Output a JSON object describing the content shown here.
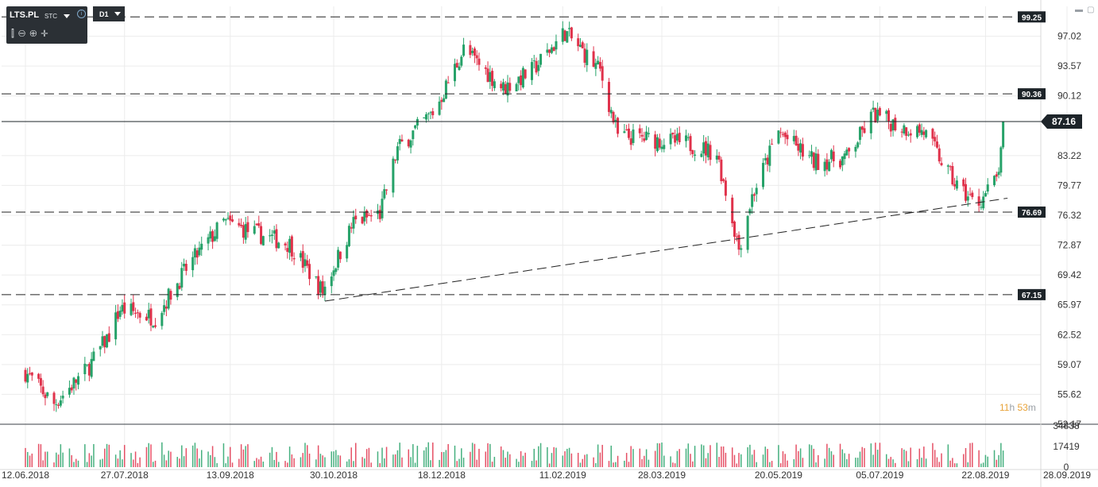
{
  "header": {
    "symbol": "LTS.PL",
    "market": "STC",
    "timeframe": "D1",
    "tools": [
      "candles-icon",
      "zoom-out-icon",
      "zoom-in-icon",
      "move-icon"
    ]
  },
  "countdown": {
    "hours": "11",
    "h_unit": "h",
    "minutes": "53",
    "m_unit": "m"
  },
  "colors": {
    "up": "#26a269",
    "down": "#e0324b",
    "label_bg": "#1d2429",
    "grid": "#ececec"
  },
  "chart_data": {
    "type": "candlestick",
    "price_axis": {
      "ticks": [
        "97.02",
        "93.57",
        "90.12",
        "83.22",
        "79.77",
        "76.32",
        "72.87",
        "69.42",
        "65.97",
        "62.52",
        "59.07",
        "55.62",
        "52.17"
      ],
      "range": [
        52.17,
        100.47
      ]
    },
    "volume_axis": {
      "ticks": [
        "34838",
        "17419",
        "0"
      ],
      "range": [
        0,
        34838
      ]
    },
    "date_labels": [
      "12.06.2018",
      "27.07.2018",
      "13.09.2018",
      "30.10.2018",
      "18.12.2018",
      "11.02.2019",
      "28.03.2019",
      "20.05.2019",
      "05.07.2019",
      "22.08.2019",
      "28.09.2019"
    ],
    "current_price": {
      "value": 87.16,
      "label": "87.16"
    },
    "horizontal_levels": [
      {
        "value": 99.25,
        "label": "99.25"
      },
      {
        "value": 90.36,
        "label": "90.36"
      },
      {
        "value": 76.69,
        "label": "76.69"
      },
      {
        "value": 67.15,
        "label": "67.15"
      }
    ],
    "trendline": {
      "from": {
        "date": "2018-10-26",
        "price": 66.4
      },
      "to": {
        "date": "2019-09-01",
        "price": 78.3
      }
    },
    "anchors": [
      {
        "date": "2018-06-12",
        "price": 58.2
      },
      {
        "date": "2018-06-25",
        "price": 54.5
      },
      {
        "date": "2018-07-10",
        "price": 58.5
      },
      {
        "date": "2018-07-20",
        "price": 62.5
      },
      {
        "date": "2018-07-25",
        "price": 65.5
      },
      {
        "date": "2018-08-10",
        "price": 64.5
      },
      {
        "date": "2018-08-25",
        "price": 70.5
      },
      {
        "date": "2018-09-10",
        "price": 75.5
      },
      {
        "date": "2018-09-25",
        "price": 74.2
      },
      {
        "date": "2018-10-10",
        "price": 73.0
      },
      {
        "date": "2018-10-25",
        "price": 67.5
      },
      {
        "date": "2018-11-08",
        "price": 75.5
      },
      {
        "date": "2018-11-20",
        "price": 76.5
      },
      {
        "date": "2018-11-28",
        "price": 84.0
      },
      {
        "date": "2018-12-15",
        "price": 88.5
      },
      {
        "date": "2018-12-28",
        "price": 95.5
      },
      {
        "date": "2019-01-15",
        "price": 91.0
      },
      {
        "date": "2019-01-28",
        "price": 93.0
      },
      {
        "date": "2019-02-12",
        "price": 97.5
      },
      {
        "date": "2019-02-28",
        "price": 93.0
      },
      {
        "date": "2019-03-08",
        "price": 85.5
      },
      {
        "date": "2019-03-28",
        "price": 85.0
      },
      {
        "date": "2019-04-10",
        "price": 84.5
      },
      {
        "date": "2019-04-22",
        "price": 83.5
      },
      {
        "date": "2019-05-02",
        "price": 72.5
      },
      {
        "date": "2019-05-08",
        "price": 78.5
      },
      {
        "date": "2019-05-20",
        "price": 86.0
      },
      {
        "date": "2019-06-05",
        "price": 82.5
      },
      {
        "date": "2019-06-20",
        "price": 83.0
      },
      {
        "date": "2019-07-02",
        "price": 88.0
      },
      {
        "date": "2019-07-15",
        "price": 86.5
      },
      {
        "date": "2019-07-25",
        "price": 86.0
      },
      {
        "date": "2019-08-08",
        "price": 80.0
      },
      {
        "date": "2019-08-18",
        "price": 77.5
      },
      {
        "date": "2019-08-27",
        "price": 80.5
      },
      {
        "date": "2019-09-01",
        "price": 87.16
      }
    ]
  }
}
